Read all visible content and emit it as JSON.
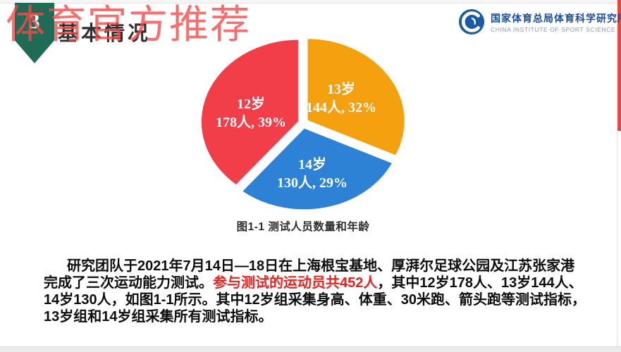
{
  "watermark": {
    "text": "体育官方推荐",
    "color": "#f94949"
  },
  "header": {
    "section_number": "3",
    "title": "基本情况",
    "ribbon_color": "#206b56"
  },
  "logo": {
    "name_cn": "国家体育总局体育科学研究所",
    "name_en": "CHINA INSTITUTE OF SPORT SCIENCE",
    "emblem_color": "#1b5aa5"
  },
  "chart_data": {
    "type": "pie",
    "title": "图1-1 测试人员数量和年龄",
    "total_people": 452,
    "order_clockwise_from_top": [
      "13岁",
      "14岁",
      "12岁"
    ],
    "slices": [
      {
        "label": "12岁",
        "people": 178,
        "percent": 39,
        "display": "178人, 39%",
        "color": "#f23e48"
      },
      {
        "label": "13岁",
        "people": 144,
        "percent": 32,
        "display": "144人, 32%",
        "color": "#f5a00e"
      },
      {
        "label": "14岁",
        "people": 130,
        "percent": 29,
        "display": "130人, 29%",
        "color": "#2d82d5"
      }
    ]
  },
  "paragraph": {
    "line1": "研究团队于2021年7月14日—18日在上海根宝基地、厚湃尔足球公园及江苏张家港",
    "line2_black1": "完成了三次运动能力测试。",
    "line2_red": "参与测试的运动员共452人",
    "line2_black2": "，其中12岁178人、13岁144人、",
    "line3": "14岁130人，如图1-1所示。其中12岁组采集身高、体重、30米跑、箭头跑等测试指标，",
    "line4": "13岁组和14岁组采集所有测试指标。"
  }
}
